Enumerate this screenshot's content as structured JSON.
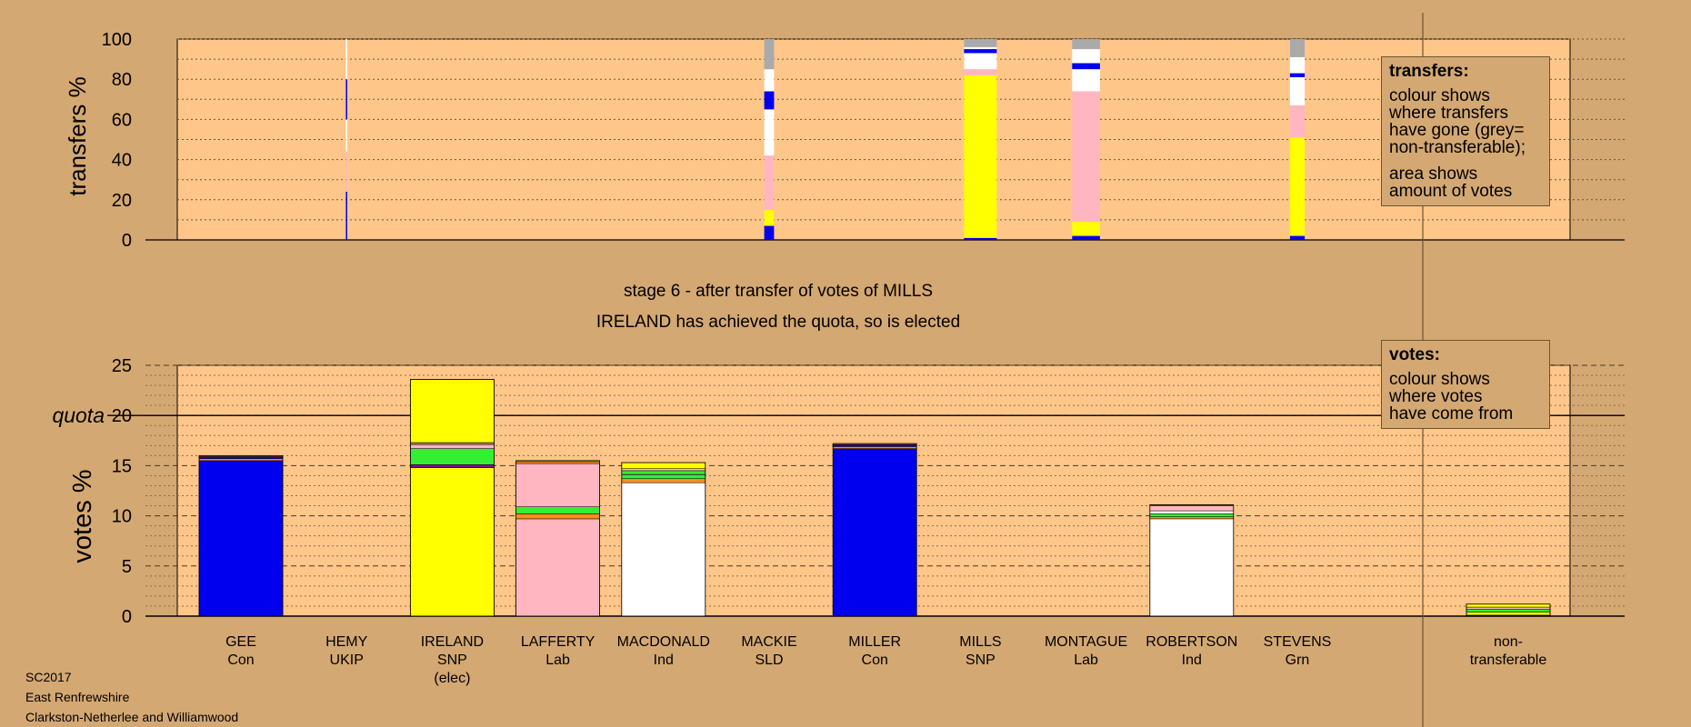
{
  "top_ylabel": "transfers %",
  "bottom_ylabel": "votes %",
  "quota_label": "quota",
  "stage_line1": "stage 6 - after transfer of votes of MILLS",
  "stage_line2": "IRELAND has achieved the quota, so is elected",
  "legend_transfers": {
    "title": "transfers:",
    "lines_a": [
      "colour shows",
      "where transfers",
      "have gone (grey=",
      "non-transferable);"
    ],
    "lines_b": [
      "area shows",
      "amount of votes"
    ]
  },
  "legend_votes": {
    "title": "votes:",
    "lines": [
      "colour shows",
      "where votes",
      "have come from"
    ]
  },
  "footer": [
    "SC2017",
    "East Renfrewshire",
    "Clarkston-Netherlee and Williamwood"
  ],
  "colors": {
    "background": "#D4A872",
    "plot_bg": "#FFC68A",
    "Con": "#0000EE",
    "SNP": "#FFFF00",
    "Lab": "#FFB6C1",
    "Ind": "#FFFFFF",
    "SLD": "#FF8C1A",
    "Grn": "#33EE33",
    "UKIP": "#8800AA",
    "nontransferable": "#AAAAAA"
  },
  "chart_data": [
    {
      "type": "bar",
      "title": "transfers",
      "ylabel": "transfers %",
      "ylim": [
        0,
        100
      ],
      "yticks": [
        0,
        20,
        40,
        60,
        80,
        100
      ],
      "categories": [
        "GEE",
        "HEMY",
        "IRELAND",
        "LAFFERTY",
        "MACDONALD",
        "MACKIE",
        "MILLER",
        "MILLS",
        "MONTAGUE",
        "ROBERTSON",
        "STEVENS"
      ],
      "bars": [
        {
          "category": "HEMY",
          "width_share": 0.01,
          "segments": [
            {
              "party": "Con",
              "value": 24
            },
            {
              "party": "Lab",
              "value": 20
            },
            {
              "party": "Ind",
              "value": 16
            },
            {
              "party": "Con",
              "value": 20
            },
            {
              "party": "Ind",
              "value": 20
            }
          ]
        },
        {
          "category": "MACKIE",
          "width_share": 0.3,
          "segments": [
            {
              "party": "Con",
              "value": 7
            },
            {
              "party": "SNP",
              "value": 8
            },
            {
              "party": "Lab",
              "value": 27
            },
            {
              "party": "Ind",
              "value": 23
            },
            {
              "party": "Con",
              "value": 9
            },
            {
              "party": "Ind",
              "value": 11
            },
            {
              "party": "nontransferable",
              "value": 15
            }
          ]
        },
        {
          "category": "MILLS",
          "width_share": 1.0,
          "segments": [
            {
              "party": "Con",
              "value": 1
            },
            {
              "party": "SNP",
              "value": 81
            },
            {
              "party": "Lab",
              "value": 3
            },
            {
              "party": "Ind",
              "value": 8
            },
            {
              "party": "Con",
              "value": 2
            },
            {
              "party": "Ind",
              "value": 1
            },
            {
              "party": "nontransferable",
              "value": 4
            }
          ]
        },
        {
          "category": "MONTAGUE",
          "width_share": 0.85,
          "segments": [
            {
              "party": "Con",
              "value": 2
            },
            {
              "party": "SNP",
              "value": 7
            },
            {
              "party": "Lab",
              "value": 65
            },
            {
              "party": "Ind",
              "value": 11
            },
            {
              "party": "Con",
              "value": 3
            },
            {
              "party": "Ind",
              "value": 7
            },
            {
              "party": "nontransferable",
              "value": 5
            }
          ]
        },
        {
          "category": "STEVENS",
          "width_share": 0.45,
          "segments": [
            {
              "party": "Con",
              "value": 2
            },
            {
              "party": "SNP",
              "value": 49
            },
            {
              "party": "Lab",
              "value": 16
            },
            {
              "party": "Ind",
              "value": 14
            },
            {
              "party": "Con",
              "value": 2
            },
            {
              "party": "Ind",
              "value": 8
            },
            {
              "party": "nontransferable",
              "value": 9
            }
          ]
        }
      ]
    },
    {
      "type": "bar",
      "title": "votes",
      "ylabel": "votes %",
      "ylim": [
        0,
        25
      ],
      "yticks": [
        0,
        5,
        10,
        15,
        20,
        25
      ],
      "quota": 20,
      "categories": [
        {
          "name": "GEE",
          "party": "Con"
        },
        {
          "name": "HEMY",
          "party": "UKIP"
        },
        {
          "name": "IRELAND",
          "party": "SNP",
          "note": "(elec)"
        },
        {
          "name": "LAFFERTY",
          "party": "Lab"
        },
        {
          "name": "MACDONALD",
          "party": "Ind"
        },
        {
          "name": "MACKIE",
          "party": "SLD"
        },
        {
          "name": "MILLER",
          "party": "Con"
        },
        {
          "name": "MILLS",
          "party": "SNP"
        },
        {
          "name": "MONTAGUE",
          "party": "Lab"
        },
        {
          "name": "ROBERTSON",
          "party": "Ind"
        },
        {
          "name": "STEVENS",
          "party": "Grn"
        },
        {
          "name": "non-",
          "party": "transferable",
          "note": ""
        }
      ],
      "bars": [
        {
          "category": "GEE",
          "segments": [
            {
              "party": "Con",
              "value": 15.5
            },
            {
              "party": "SLD",
              "value": 0.2
            },
            {
              "party": "Con",
              "value": 0.2
            },
            {
              "party": "SLD",
              "value": 0.1
            }
          ]
        },
        {
          "category": "HEMY",
          "segments": []
        },
        {
          "category": "IRELAND",
          "segments": [
            {
              "party": "SNP",
              "value": 14.8
            },
            {
              "party": "UKIP",
              "value": 0.3
            },
            {
              "party": "Grn",
              "value": 1.6
            },
            {
              "party": "Lab",
              "value": 0.4
            },
            {
              "party": "Ind",
              "value": 0.1
            },
            {
              "party": "SLD",
              "value": 0.1
            },
            {
              "party": "SNP",
              "value": 6.3
            }
          ]
        },
        {
          "category": "LAFFERTY",
          "segments": [
            {
              "party": "Lab",
              "value": 9.7
            },
            {
              "party": "SLD",
              "value": 0.5
            },
            {
              "party": "Grn",
              "value": 0.7
            },
            {
              "party": "Lab",
              "value": 4.3
            },
            {
              "party": "SLD",
              "value": 0.2
            },
            {
              "party": "SNP",
              "value": 0.1
            }
          ]
        },
        {
          "category": "MACDONALD",
          "segments": [
            {
              "party": "Ind",
              "value": 13.3
            },
            {
              "party": "SLD",
              "value": 0.4
            },
            {
              "party": "Grn",
              "value": 0.4
            },
            {
              "party": "Ind",
              "value": 0.1
            },
            {
              "party": "Grn",
              "value": 0.3
            },
            {
              "party": "Lab",
              "value": 0.2
            },
            {
              "party": "SNP",
              "value": 0.6
            }
          ]
        },
        {
          "category": "MACKIE",
          "segments": []
        },
        {
          "category": "MILLER",
          "segments": [
            {
              "party": "Con",
              "value": 16.7
            },
            {
              "party": "SLD",
              "value": 0.2
            },
            {
              "party": "Con",
              "value": 0.2
            },
            {
              "party": "SLD",
              "value": 0.1
            }
          ]
        },
        {
          "category": "MILLS",
          "segments": []
        },
        {
          "category": "MONTAGUE",
          "segments": []
        },
        {
          "category": "ROBERTSON",
          "segments": [
            {
              "party": "Ind",
              "value": 9.7
            },
            {
              "party": "SLD",
              "value": 0.2
            },
            {
              "party": "Grn",
              "value": 0.3
            },
            {
              "party": "Ind",
              "value": 0.3
            },
            {
              "party": "Lab",
              "value": 0.5
            },
            {
              "party": "SLD",
              "value": 0.1
            }
          ]
        },
        {
          "category": "STEVENS",
          "segments": []
        },
        {
          "category": "non-transferable",
          "segments": [
            {
              "party": "Con",
              "value": 0.1
            },
            {
              "party": "SNP",
              "value": 0.3
            },
            {
              "party": "Grn",
              "value": 0.3
            },
            {
              "party": "Lab",
              "value": 0.2
            },
            {
              "party": "SNP",
              "value": 0.3
            }
          ]
        }
      ]
    }
  ]
}
